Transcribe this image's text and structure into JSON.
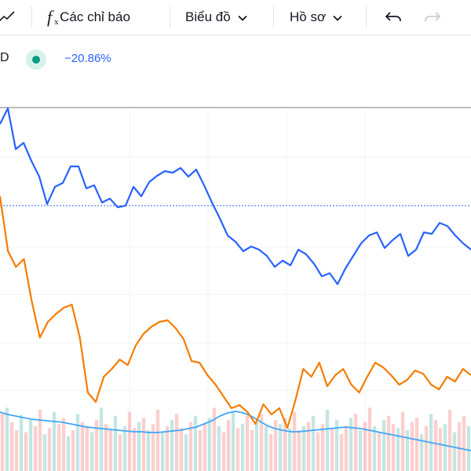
{
  "toolbar": {
    "indicators_label": "Các chỉ báo",
    "chart_label": "Biểu đồ",
    "profile_label": "Hồ sơ"
  },
  "legend": {
    "symbol_fragment": "D",
    "change": "−20.86%"
  },
  "colors": {
    "primary_series": "#2962ff",
    "compare_series": "#f57c00",
    "volume_up": "#26a69a",
    "volume_down": "#ef5350",
    "volume_ma": "#42a5f5",
    "status_dot": "#089981"
  },
  "icons": [
    "line-chart-icon",
    "fx-icon",
    "chevron-down-icon",
    "undo-icon",
    "redo-icon"
  ],
  "chart_data": {
    "type": "line",
    "grid": true,
    "series": [
      {
        "color": "#2962ff",
        "values": [
          158,
          138,
          190,
          182,
          205,
          225,
          260,
          238,
          233,
          212,
          212,
          240,
          236,
          258,
          253,
          264,
          262,
          238,
          250,
          232,
          224,
          218,
          220,
          214,
          225,
          216,
          236,
          258,
          278,
          300,
          308,
          320,
          314,
          318,
          326,
          340,
          332,
          338,
          318,
          324,
          336,
          352,
          348,
          362,
          342,
          326,
          310,
          300,
          296,
          316,
          306,
          298,
          326,
          318,
          296,
          298,
          284,
          288,
          300,
          310,
          318
        ]
      },
      {
        "color": "#f57c00",
        "values": [
          250,
          320,
          340,
          330,
          385,
          430,
          410,
          400,
          392,
          388,
          430,
          500,
          512,
          480,
          470,
          458,
          465,
          440,
          425,
          416,
          410,
          408,
          418,
          432,
          460,
          462,
          478,
          490,
          505,
          520,
          516,
          525,
          540,
          515,
          528,
          520,
          545,
          510,
          470,
          480,
          462,
          492,
          478,
          470,
          490,
          500,
          480,
          462,
          468,
          478,
          490,
          484,
          472,
          476,
          490,
          496,
          480,
          486,
          470,
          478
        ]
      }
    ],
    "volume": {
      "values": [
        56,
        62,
        48,
        40,
        55,
        38,
        50,
        44,
        60,
        36,
        42,
        58,
        46,
        52,
        34,
        40,
        56,
        48,
        44,
        38,
        50,
        62,
        46,
        40,
        54,
        36,
        44,
        58,
        42,
        48,
        52,
        40,
        46,
        60,
        38,
        44,
        50,
        56,
        42,
        36,
        48,
        54,
        40,
        46,
        52,
        62,
        44,
        38,
        50,
        58,
        42,
        46,
        54,
        40,
        48,
        56,
        44,
        36,
        50,
        46,
        52,
        42,
        58,
        40,
        44,
        48,
        54,
        38,
        46,
        60,
        42,
        50,
        36,
        44,
        52,
        56,
        40,
        48,
        62,
        44,
        38,
        50,
        54,
        46,
        42,
        58,
        40,
        48,
        52,
        36,
        44,
        56,
        50,
        42,
        46,
        60,
        38,
        48,
        54,
        44
      ],
      "ma": [
        75,
        72,
        70,
        68,
        66,
        65,
        64,
        63,
        62,
        60,
        58,
        56,
        55,
        54,
        53,
        52,
        51,
        50,
        50,
        49,
        49,
        50,
        51,
        52,
        54,
        56,
        60,
        64,
        70,
        74,
        76,
        74,
        70,
        64,
        58,
        54,
        52,
        50,
        50,
        51,
        52,
        53,
        54,
        55,
        56,
        55,
        54,
        52,
        50,
        48,
        46,
        44,
        42,
        40,
        38,
        36,
        34,
        32,
        30,
        28,
        26
      ]
    }
  }
}
